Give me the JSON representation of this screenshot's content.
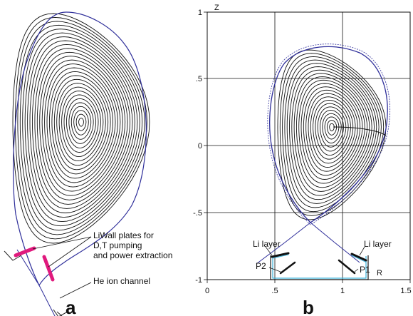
{
  "panel_a": {
    "annotations": {
      "liwall_line1": "LiWall plates for",
      "liwall_line2": "D,T pumping",
      "liwall_line3": "and power extraction",
      "he_channel": "He ion channel"
    },
    "panel_label": "a",
    "colors": {
      "separatrix": "#2e2e9a",
      "plates": "#e0197d",
      "contours": "#111111"
    }
  },
  "panel_b": {
    "axis": {
      "z_label": "Z",
      "r_label": "R",
      "y_ticks": [
        "1",
        ".5",
        "0",
        "-.5",
        "-1"
      ],
      "x_ticks": [
        "0",
        ".5",
        "1",
        "1.5"
      ]
    },
    "annotations": {
      "li_layer_left": "Li layer",
      "li_layer_right": "Li layer",
      "p2": "P2",
      "p1": "P1"
    },
    "panel_label": "b",
    "colors": {
      "separatrix": "#2e2e9a",
      "divertor": "#3ab0d8",
      "contours": "#111111"
    }
  }
}
